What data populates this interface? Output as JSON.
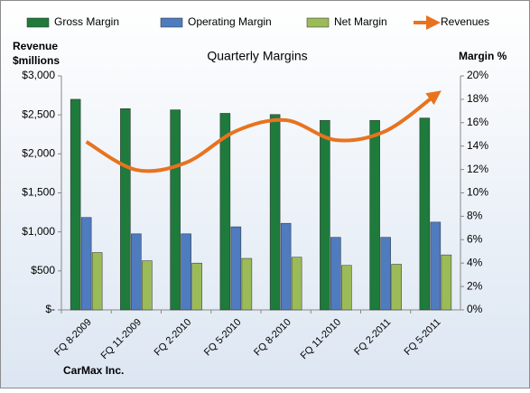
{
  "chart_data": {
    "type": "bar-line",
    "title": "Quarterly Margins",
    "y_label": [
      "Revenue",
      "$millions"
    ],
    "y2_label": "Margin %",
    "annotation": "CarMax Inc.",
    "categories": [
      "FQ 8-2009",
      "FQ 11-2009",
      "FQ 2-2010",
      "FQ 5-2010",
      "FQ 8-2010",
      "FQ 11-2010",
      "FQ 2-2011",
      "FQ 5-2011"
    ],
    "series": [
      {
        "name": "Gross Margin",
        "type": "bar",
        "axis": "y2",
        "color": "#1e7b3c",
        "values": [
          18.0,
          17.2,
          17.1,
          16.8,
          16.7,
          16.2,
          16.2,
          16.4
        ]
      },
      {
        "name": "Operating Margin",
        "type": "bar",
        "axis": "y2",
        "color": "#4f7bbf",
        "values": [
          7.9,
          6.5,
          6.5,
          7.1,
          7.4,
          6.2,
          6.2,
          7.5
        ]
      },
      {
        "name": "Net Margin",
        "type": "bar",
        "axis": "y2",
        "color": "#9bbb59",
        "values": [
          4.9,
          4.2,
          4.0,
          4.4,
          4.5,
          3.8,
          3.9,
          4.7
        ]
      },
      {
        "name": "Revenues",
        "type": "line",
        "axis": "y",
        "color": "#e8731f",
        "values": [
          2154,
          1795,
          1888,
          2293,
          2432,
          2178,
          2293,
          2757
        ]
      }
    ],
    "ylim": [
      0,
      3000
    ],
    "yticks": [
      {
        "value": 0,
        "label": "$-"
      },
      {
        "value": 500,
        "label": "$500"
      },
      {
        "value": 1000,
        "label": "$1,000"
      },
      {
        "value": 1500,
        "label": "$1,500"
      },
      {
        "value": 2000,
        "label": "$2,000"
      },
      {
        "value": 2500,
        "label": "$2,500"
      },
      {
        "value": 3000,
        "label": "$3,000"
      }
    ],
    "y2lim": [
      0,
      20
    ],
    "y2ticks": [
      {
        "value": 0,
        "label": "0%"
      },
      {
        "value": 2,
        "label": "2%"
      },
      {
        "value": 4,
        "label": "4%"
      },
      {
        "value": 6,
        "label": "6%"
      },
      {
        "value": 8,
        "label": "8%"
      },
      {
        "value": 10,
        "label": "10%"
      },
      {
        "value": 12,
        "label": "12%"
      },
      {
        "value": 14,
        "label": "14%"
      },
      {
        "value": 16,
        "label": "16%"
      },
      {
        "value": 18,
        "label": "18%"
      },
      {
        "value": 20,
        "label": "20%"
      }
    ],
    "grid": false
  }
}
